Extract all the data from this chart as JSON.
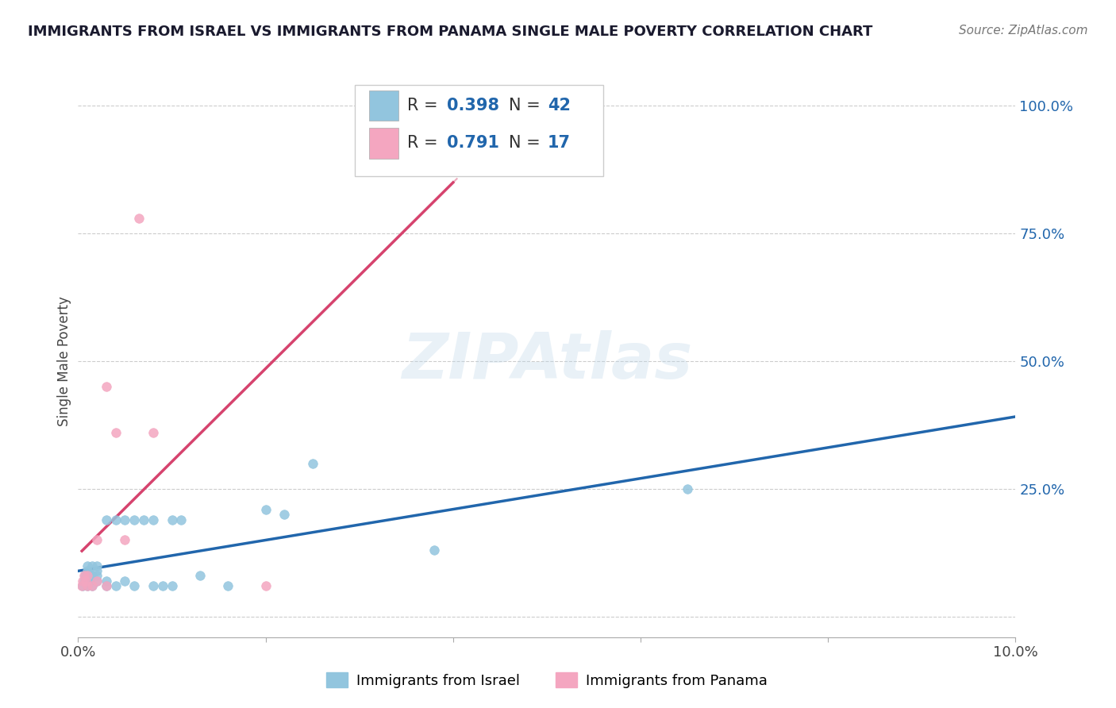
{
  "title": "IMMIGRANTS FROM ISRAEL VS IMMIGRANTS FROM PANAMA SINGLE MALE POVERTY CORRELATION CHART",
  "source": "Source: ZipAtlas.com",
  "ylabel": "Single Male Poverty",
  "israel_R": 0.398,
  "israel_N": 42,
  "panama_R": 0.791,
  "panama_N": 17,
  "israel_color": "#92c5de",
  "panama_color": "#f4a6c0",
  "israel_line_color": "#2166ac",
  "panama_line_color": "#d6436e",
  "background_color": "#ffffff",
  "xlim": [
    0.0,
    0.1
  ],
  "ylim": [
    -0.04,
    1.04
  ],
  "y_ticks": [
    0.0,
    0.25,
    0.5,
    0.75,
    1.0
  ],
  "y_tick_labels": [
    "",
    "25.0%",
    "50.0%",
    "75.0%",
    "100.0%"
  ],
  "x_tick_positions": [
    0.0,
    0.02,
    0.04,
    0.06,
    0.08,
    0.1
  ],
  "x_tick_labels": [
    "0.0%",
    "",
    "",
    "",
    "",
    "10.0%"
  ],
  "israel_x": [
    0.0005,
    0.0006,
    0.0007,
    0.0008,
    0.0009,
    0.001,
    0.001,
    0.001,
    0.001,
    0.001,
    0.0012,
    0.0013,
    0.0015,
    0.0015,
    0.0015,
    0.002,
    0.002,
    0.002,
    0.002,
    0.003,
    0.003,
    0.003,
    0.004,
    0.004,
    0.005,
    0.005,
    0.006,
    0.006,
    0.007,
    0.008,
    0.008,
    0.009,
    0.01,
    0.01,
    0.011,
    0.013,
    0.016,
    0.02,
    0.022,
    0.025,
    0.038,
    0.065
  ],
  "israel_y": [
    0.06,
    0.07,
    0.08,
    0.07,
    0.08,
    0.06,
    0.07,
    0.08,
    0.09,
    0.1,
    0.07,
    0.08,
    0.06,
    0.08,
    0.1,
    0.07,
    0.08,
    0.09,
    0.1,
    0.06,
    0.07,
    0.19,
    0.06,
    0.19,
    0.07,
    0.19,
    0.06,
    0.19,
    0.19,
    0.06,
    0.19,
    0.06,
    0.19,
    0.06,
    0.19,
    0.08,
    0.06,
    0.21,
    0.2,
    0.3,
    0.13,
    0.25
  ],
  "panama_x": [
    0.0004,
    0.0005,
    0.0006,
    0.0008,
    0.001,
    0.001,
    0.0015,
    0.002,
    0.002,
    0.003,
    0.003,
    0.004,
    0.005,
    0.0065,
    0.008,
    0.02,
    0.04
  ],
  "panama_y": [
    0.06,
    0.07,
    0.08,
    0.07,
    0.06,
    0.08,
    0.06,
    0.07,
    0.15,
    0.06,
    0.45,
    0.36,
    0.15,
    0.78,
    0.36,
    0.06,
    0.95
  ]
}
